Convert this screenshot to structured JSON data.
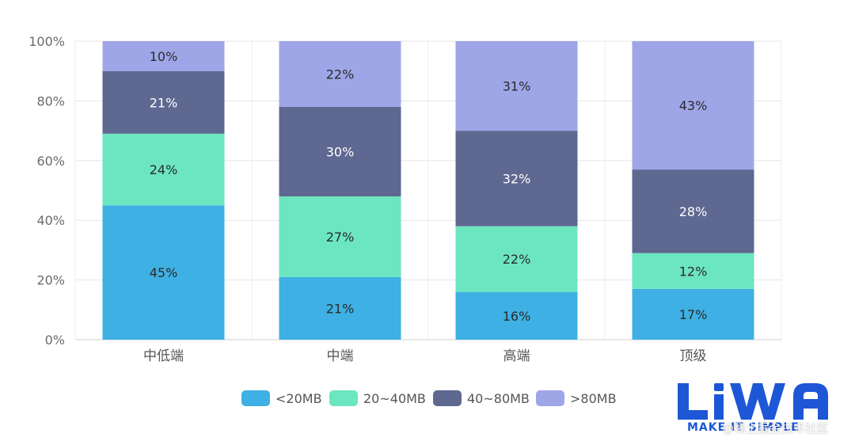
{
  "chart_data": {
    "type": "bar",
    "stacked": true,
    "categories": [
      "中低端",
      "中端",
      "高端",
      "顶级"
    ],
    "series": [
      {
        "name": "<20MB",
        "color": "#3eb0e3",
        "label_color": "#2b2b2b",
        "values": [
          45,
          21,
          16,
          17
        ],
        "labels": [
          "45%",
          "21%",
          "16%",
          "17%"
        ]
      },
      {
        "name": "20~40MB",
        "color": "#6be6c1",
        "label_color": "#2b2b2b",
        "values": [
          24,
          27,
          22,
          12
        ],
        "labels": [
          "24%",
          "27%",
          "22%",
          "12%"
        ]
      },
      {
        "name": "40~80MB",
        "color": "#5f6891",
        "label_color": "#ffffff",
        "values": [
          21,
          30,
          32,
          28
        ],
        "labels": [
          "21%",
          "30%",
          "32%",
          "28%"
        ]
      },
      {
        "name": ">80MB",
        "color": "#9fa6e8",
        "label_color": "#2b2b2b",
        "values": [
          10,
          22,
          31,
          43
        ],
        "labels": [
          "10%",
          "22%",
          "31%",
          "43%"
        ]
      }
    ],
    "yticks": [
      "0%",
      "20%",
      "40%",
      "60%",
      "80%",
      "100%"
    ],
    "ylim": [
      0,
      100
    ],
    "grid": true,
    "legend_position": "bottom-center"
  },
  "branding": {
    "logo_text": "LiWA",
    "logo_subtext": "MAKE IT SIMPLE",
    "watermark": "@稀土掘金技术社区"
  }
}
